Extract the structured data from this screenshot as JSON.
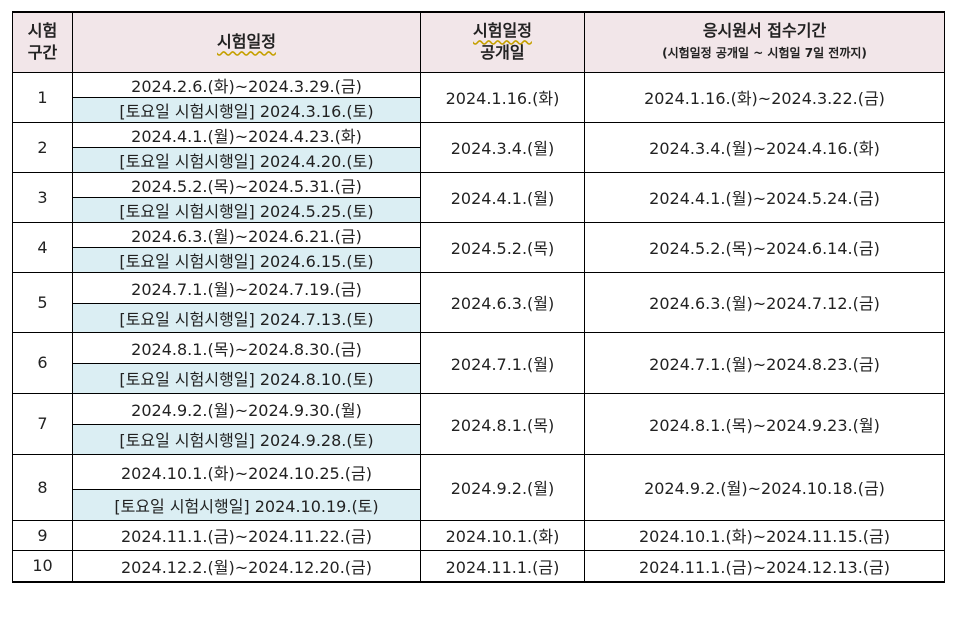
{
  "header": {
    "col_period": "시험\n구간",
    "col_period_line1": "시험",
    "col_period_line2": "구간",
    "col_schedule": "시험일정",
    "col_announce_line1": "시험일정",
    "col_announce_line2": "공개일",
    "col_receipt_line1": "응시원서 접수기간",
    "col_receipt_line2": "(시험일정 공개일 ~ 시험일 7일 전까지)"
  },
  "rows": [
    {
      "no": "1",
      "period": "2024.2.6.(화)~2024.3.29.(금)",
      "saturday": "[토요일 시험시행일] 2024.3.16.(토)",
      "announce": "2024.1.16.(화)",
      "receipt": "2024.1.16.(화)~2024.3.22.(금)"
    },
    {
      "no": "2",
      "period": "2024.4.1.(월)~2024.4.23.(화)",
      "saturday": "[토요일 시험시행일] 2024.4.20.(토)",
      "announce": "2024.3.4.(월)",
      "receipt": "2024.3.4.(월)~2024.4.16.(화)"
    },
    {
      "no": "3",
      "period": "2024.5.2.(목)~2024.5.31.(금)",
      "saturday": "[토요일 시험시행일] 2024.5.25.(토)",
      "announce": "2024.4.1.(월)",
      "receipt": "2024.4.1.(월)~2024.5.24.(금)"
    },
    {
      "no": "4",
      "period": "2024.6.3.(월)~2024.6.21.(금)",
      "saturday": "[토요일 시험시행일] 2024.6.15.(토)",
      "announce": "2024.5.2.(목)",
      "receipt": "2024.5.2.(목)~2024.6.14.(금)"
    },
    {
      "no": "5",
      "period": "2024.7.1.(월)~2024.7.19.(금)",
      "saturday": "[토요일 시험시행일] 2024.7.13.(토)",
      "announce": "2024.6.3.(월)",
      "receipt": "2024.6.3.(월)~2024.7.12.(금)"
    },
    {
      "no": "6",
      "period": "2024.8.1.(목)~2024.8.30.(금)",
      "saturday": "[토요일 시험시행일] 2024.8.10.(토)",
      "announce": "2024.7.1.(월)",
      "receipt": "2024.7.1.(월)~2024.8.23.(금)"
    },
    {
      "no": "7",
      "period": "2024.9.2.(월)~2024.9.30.(월)",
      "saturday": "[토요일 시험시행일] 2024.9.28.(토)",
      "announce": "2024.8.1.(목)",
      "receipt": "2024.8.1.(목)~2024.9.23.(월)"
    },
    {
      "no": "8",
      "period": "2024.10.1.(화)~2024.10.25.(금)",
      "saturday": "[토요일 시험시행일] 2024.10.19.(토)",
      "announce": "2024.9.2.(월)",
      "receipt": "2024.9.2.(월)~2024.10.18.(금)"
    },
    {
      "no": "9",
      "period": "2024.11.1.(금)~2024.11.22.(금)",
      "announce": "2024.10.1.(화)",
      "receipt": "2024.10.1.(화)~2024.11.15.(금)"
    },
    {
      "no": "10",
      "period": "2024.12.2.(월)~2024.12.20.(금)",
      "announce": "2024.11.1.(금)",
      "receipt": "2024.11.1.(금)~2024.12.13.(금)"
    }
  ]
}
